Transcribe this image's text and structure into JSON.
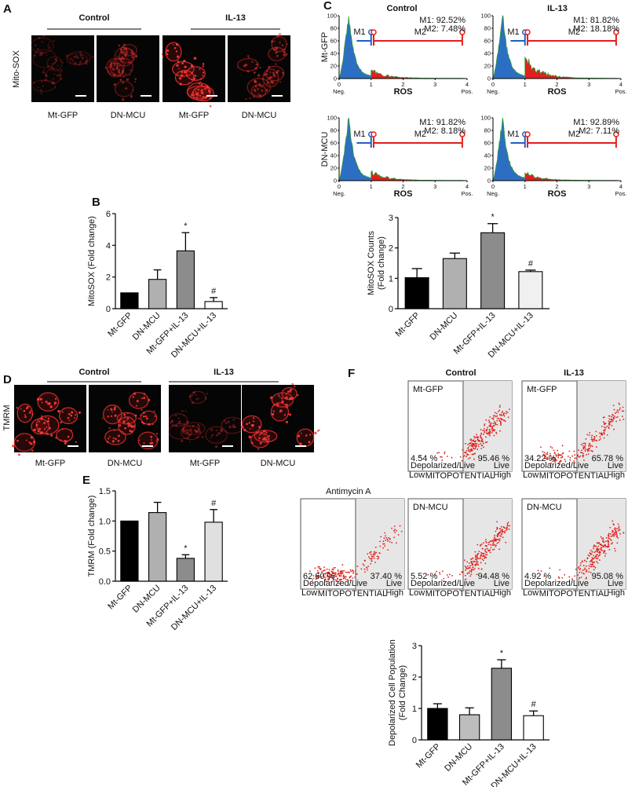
{
  "panel_a": {
    "label": "A",
    "ylabel": "Mito-SOX",
    "groups": [
      "Control",
      "IL-13"
    ],
    "captions": [
      "Mt-GFP",
      "DN-MCU",
      "Mt-GFP",
      "DN-MCU"
    ]
  },
  "panel_c": {
    "label": "C",
    "columns": [
      "Control",
      "IL-13"
    ],
    "rows": [
      "Mt-GFP",
      "DN-MCU"
    ],
    "plots": [
      {
        "m1": "M1: 92.52%",
        "m2": "M2: 7.48%"
      },
      {
        "m1": "M1: 81.82%",
        "m2": "M2: 18.18%"
      },
      {
        "m1": "M1: 91.82%",
        "m2": "M2: 8.18%"
      },
      {
        "m1": "M1: 92.89%",
        "m2": "M2: 7.11%"
      }
    ],
    "gates": [
      "M1",
      "M2"
    ],
    "x_label": "ROS",
    "x_ends": [
      "Neg.",
      "Pos."
    ],
    "xlim": [
      0,
      4
    ],
    "xticks": [
      0,
      1,
      2,
      3,
      4
    ],
    "ylim": [
      0,
      100
    ],
    "yticks": [
      0,
      20,
      40,
      60,
      80,
      100
    ]
  },
  "panel_d": {
    "label": "D",
    "ylabel": "TMRM",
    "groups": [
      "Control",
      "IL-13"
    ],
    "captions": [
      "Mt-GFP",
      "DN-MCU",
      "Mt-GFP",
      "DN-MCU"
    ]
  },
  "panel_f": {
    "label": "F",
    "columns": [
      "Control",
      "IL-13"
    ],
    "plots": [
      {
        "title": "Mt-GFP",
        "left": "4.54 %",
        "right": "95.46 %"
      },
      {
        "title": "Mt-GFP",
        "left": "34.22 %",
        "right": "65.78 %"
      },
      {
        "caption": "Antimycin A",
        "left": "62.60 %",
        "right": "37.40 %"
      },
      {
        "title": "DN-MCU",
        "left": "5.52 %",
        "right": "94.48 %"
      },
      {
        "title": "DN-MCU",
        "left": "4.92 %",
        "right": "95.08 %"
      }
    ],
    "left_label": "Depolarized/Live",
    "right_label": "Live",
    "x_label": "MITOPOTENTIAL",
    "x_ends": [
      "Low",
      "High"
    ]
  },
  "chart_data": [
    {
      "type": "bar",
      "panel_label": "B",
      "ylabel": "MitoSOX (Fold change)",
      "categories": [
        "Mt-GFP",
        "DN-MCU",
        "Mt-GFP+IL-13",
        "DN-MCU+IL-13"
      ],
      "values": [
        1,
        1.85,
        3.65,
        0.45
      ],
      "errors": [
        null,
        0.6,
        1.15,
        0.25
      ],
      "significance": [
        null,
        null,
        "*",
        "#"
      ],
      "colors": [
        "#000000",
        "#b0b0b0",
        "#8c8c8c",
        "#ffffff"
      ],
      "ylim": [
        0,
        6
      ],
      "yticks": [
        0,
        2,
        4,
        6
      ]
    },
    {
      "type": "bar",
      "ylabel": [
        "MitoSOX  Counts",
        "(Fold change)"
      ],
      "categories": [
        "Mt-GFP",
        "DN-MCU",
        "Mt-GFP+IL-13",
        "DN-MCU+IL-13"
      ],
      "values": [
        1.02,
        1.65,
        2.5,
        1.22
      ],
      "errors": [
        0.3,
        0.18,
        0.3,
        0.05
      ],
      "significance": [
        null,
        null,
        "*",
        "#"
      ],
      "colors": [
        "#000000",
        "#b0b0b0",
        "#8c8c8c",
        "#f0f0f0"
      ],
      "ylim": [
        0,
        3
      ],
      "yticks": [
        0,
        1,
        2,
        3
      ]
    },
    {
      "type": "bar",
      "panel_label": "E",
      "ylabel": "TMRM (Fold change)",
      "categories": [
        "Mt-GFP",
        "DN-MCU",
        "Mt-GFP+IL-13",
        "DN-MCU+IL-13"
      ],
      "values": [
        1,
        1.14,
        0.38,
        0.98
      ],
      "errors": [
        null,
        0.17,
        0.06,
        0.21
      ],
      "significance": [
        null,
        null,
        "*",
        "#"
      ],
      "colors": [
        "#000000",
        "#b0b0b0",
        "#8c8c8c",
        "#e0e0e0"
      ],
      "ylim": [
        0,
        1.5
      ],
      "yticks": [
        {
          "value": 0,
          "label": "0.0"
        },
        {
          "value": 0.5,
          "label": "0.5"
        },
        {
          "value": 1,
          "label": "1.0"
        },
        {
          "value": 1.5,
          "label": "1.5"
        }
      ]
    },
    {
      "type": "bar",
      "ylabel": [
        "Depolarized Cell Population",
        "(Fold Change)"
      ],
      "categories": [
        "Mt-GFP",
        "DN-MCU",
        "Mt-GFP+IL-13",
        "DN-MCU+IL-13"
      ],
      "values": [
        1,
        0.8,
        2.28,
        0.77
      ],
      "errors": [
        0.15,
        0.22,
        0.27,
        0.15
      ],
      "significance": [
        null,
        null,
        "*",
        "#"
      ],
      "colors": [
        "#000000",
        "#bdbdbd",
        "#8c8c8c",
        "#ffffff"
      ],
      "ylim": [
        0,
        3
      ],
      "yticks": [
        0,
        1,
        2,
        3
      ]
    }
  ]
}
